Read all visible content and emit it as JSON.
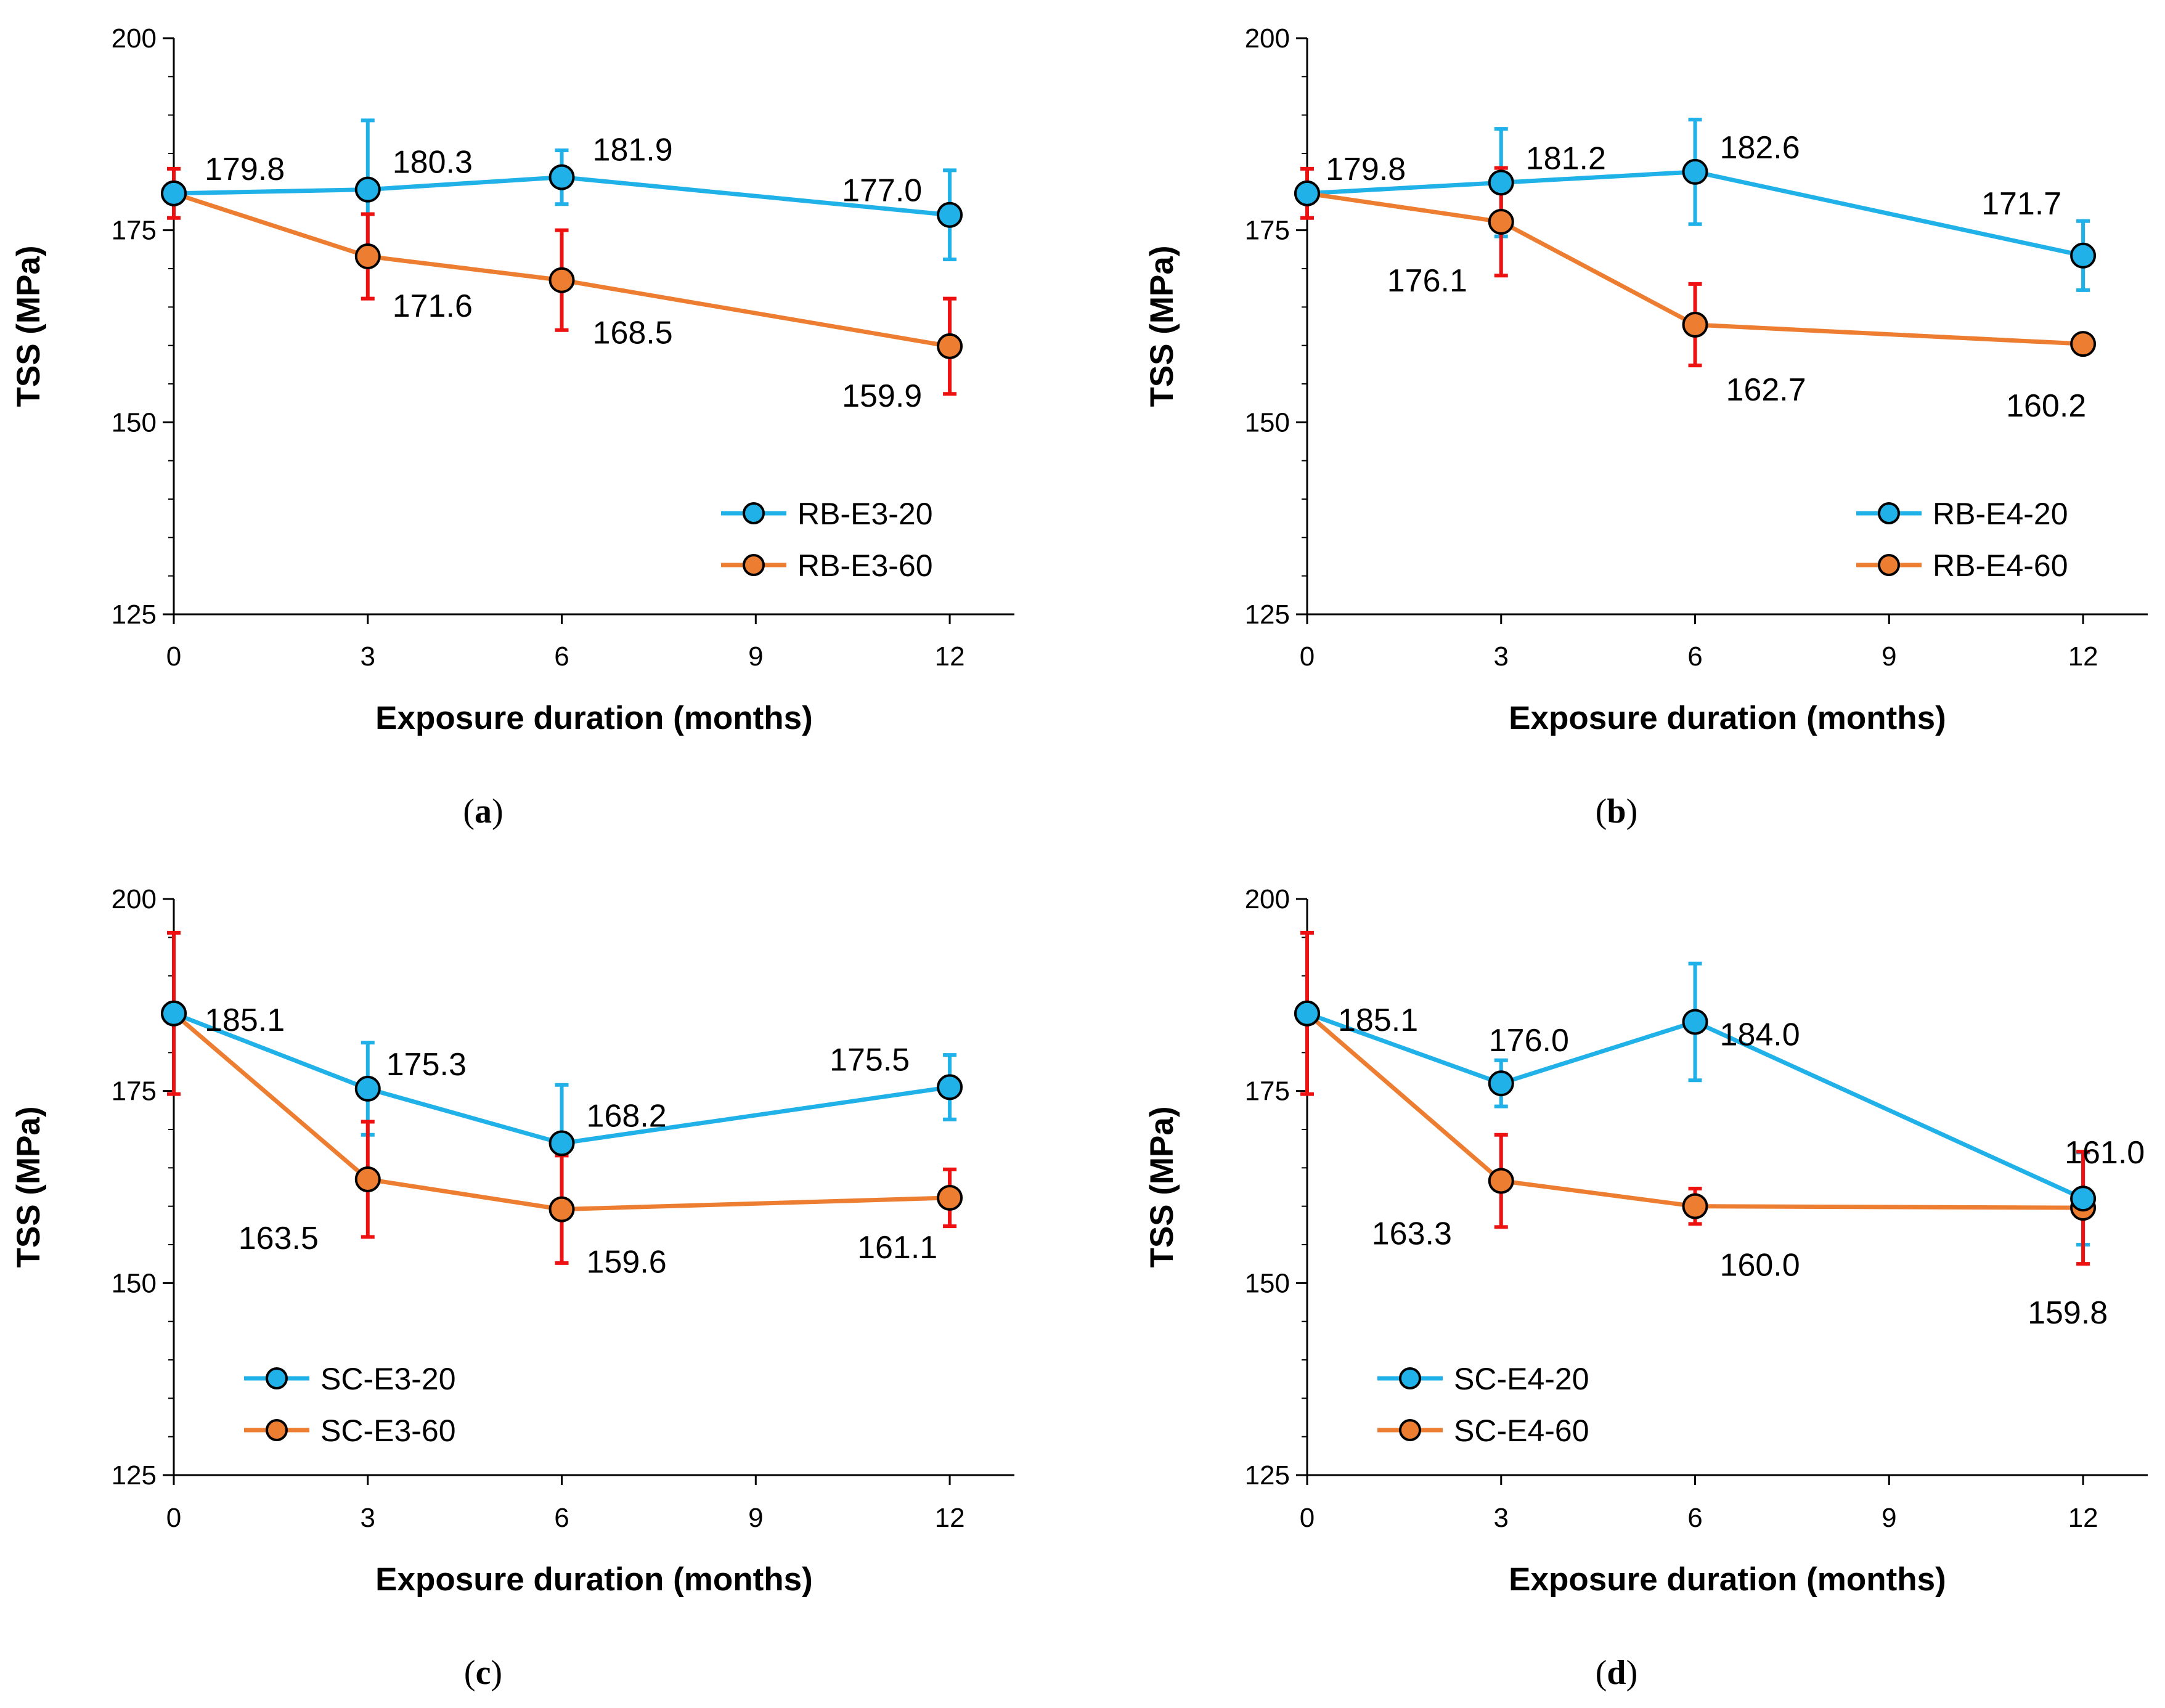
{
  "colors": {
    "series_20": "#1fb1e7",
    "series_60": "#ed7d31",
    "err_20": "#1fb1e7",
    "err_60": "#ee1111",
    "axis": "#000000"
  },
  "chart_data": [
    {
      "type": "line",
      "panel": "a",
      "caption": {
        "open": "(",
        "letter": "a",
        "close": ")"
      },
      "xlabel": "Exposure duration (months)",
      "ylabel": "TSS (MPa)",
      "xlim": [
        0,
        13
      ],
      "ylim": [
        125,
        200
      ],
      "xticks": [
        0,
        3,
        6,
        9,
        12
      ],
      "yticks": [
        125,
        150,
        175,
        200
      ],
      "legend_position": "bottom-right",
      "series": [
        {
          "name": "RB-E3-20",
          "color_key": "series_20",
          "err_color_key": "err_20",
          "x": [
            0,
            3,
            6,
            12
          ],
          "y": [
            179.8,
            180.3,
            181.9,
            177.0
          ],
          "err": [
            0,
            9,
            3.5,
            5.8
          ],
          "labels": [
            "179.8",
            "180.3",
            "181.9",
            "177.0"
          ]
        },
        {
          "name": "RB-E3-60",
          "color_key": "series_60",
          "err_color_key": "err_60",
          "x": [
            0,
            3,
            6,
            12
          ],
          "y": [
            179.8,
            171.6,
            168.5,
            159.9
          ],
          "err": [
            3.2,
            5.5,
            6.5,
            6.2
          ],
          "labels": [
            "",
            "171.6",
            "168.5",
            "159.9"
          ]
        }
      ]
    },
    {
      "type": "line",
      "panel": "b",
      "caption": {
        "open": "(",
        "letter": "b",
        "close": ")"
      },
      "xlabel": "Exposure duration (months)",
      "ylabel": "TSS (MPa)",
      "xlim": [
        0,
        13
      ],
      "ylim": [
        125,
        200
      ],
      "xticks": [
        0,
        3,
        6,
        9,
        12
      ],
      "yticks": [
        125,
        150,
        175,
        200
      ],
      "legend_position": "bottom-right",
      "series": [
        {
          "name": "RB-E4-20",
          "color_key": "series_20",
          "err_color_key": "err_20",
          "x": [
            0,
            3,
            6,
            12
          ],
          "y": [
            179.8,
            181.2,
            182.6,
            171.7
          ],
          "err": [
            0,
            7,
            6.8,
            4.5
          ],
          "labels": [
            "179.8",
            "181.2",
            "182.6",
            "171.7"
          ]
        },
        {
          "name": "RB-E4-60",
          "color_key": "series_60",
          "err_color_key": "err_60",
          "x": [
            0,
            3,
            6,
            12
          ],
          "y": [
            179.8,
            176.1,
            162.7,
            160.2
          ],
          "err": [
            3.2,
            7,
            5.3,
            1.0
          ],
          "labels": [
            "",
            "176.1",
            "162.7",
            "160.2"
          ]
        }
      ]
    },
    {
      "type": "line",
      "panel": "c",
      "caption": {
        "open": "(",
        "letter": "c",
        "close": ")"
      },
      "xlabel": "Exposure duration (months)",
      "ylabel": "TSS (MPa)",
      "xlim": [
        0,
        13
      ],
      "ylim": [
        125,
        200
      ],
      "xticks": [
        0,
        3,
        6,
        9,
        12
      ],
      "yticks": [
        125,
        150,
        175,
        200
      ],
      "legend_position": "bottom-left",
      "series": [
        {
          "name": "SC-E3-20",
          "color_key": "series_20",
          "err_color_key": "err_20",
          "x": [
            0,
            3,
            6,
            12
          ],
          "y": [
            185.1,
            175.3,
            168.2,
            175.5
          ],
          "err": [
            0,
            6,
            7.6,
            4.2
          ],
          "labels": [
            "185.1",
            "175.3",
            "168.2",
            "175.5"
          ]
        },
        {
          "name": "SC-E3-60",
          "color_key": "series_60",
          "err_color_key": "err_60",
          "x": [
            0,
            3,
            6,
            12
          ],
          "y": [
            185.1,
            163.5,
            159.6,
            161.1
          ],
          "err": [
            10.5,
            7.5,
            7,
            3.7
          ],
          "labels": [
            "",
            "163.5",
            "159.6",
            "161.1"
          ]
        }
      ]
    },
    {
      "type": "line",
      "panel": "d",
      "caption": {
        "open": "(",
        "letter": "d",
        "close": ")"
      },
      "xlabel": "Exposure duration (months)",
      "ylabel": "TSS (MPa)",
      "xlim": [
        0,
        13
      ],
      "ylim": [
        125,
        200
      ],
      "xticks": [
        0,
        3,
        6,
        9,
        12
      ],
      "yticks": [
        125,
        150,
        175,
        200
      ],
      "legend_position": "bottom-left",
      "series": [
        {
          "name": "SC-E4-20",
          "color_key": "series_20",
          "err_color_key": "err_20",
          "x": [
            0,
            3,
            6,
            12
          ],
          "y": [
            185.1,
            176.0,
            184.0,
            161.0
          ],
          "err": [
            0,
            3,
            7.6,
            6
          ],
          "labels": [
            "185.1",
            "176.0",
            "184.0",
            "161.0"
          ]
        },
        {
          "name": "SC-E4-60",
          "color_key": "series_60",
          "err_color_key": "err_60",
          "x": [
            0,
            3,
            6,
            12
          ],
          "y": [
            185.1,
            163.3,
            160.0,
            159.8
          ],
          "err": [
            10.5,
            6,
            2.3,
            7.3
          ],
          "labels": [
            "",
            "163.3",
            "160.0",
            "159.8"
          ]
        }
      ]
    }
  ]
}
